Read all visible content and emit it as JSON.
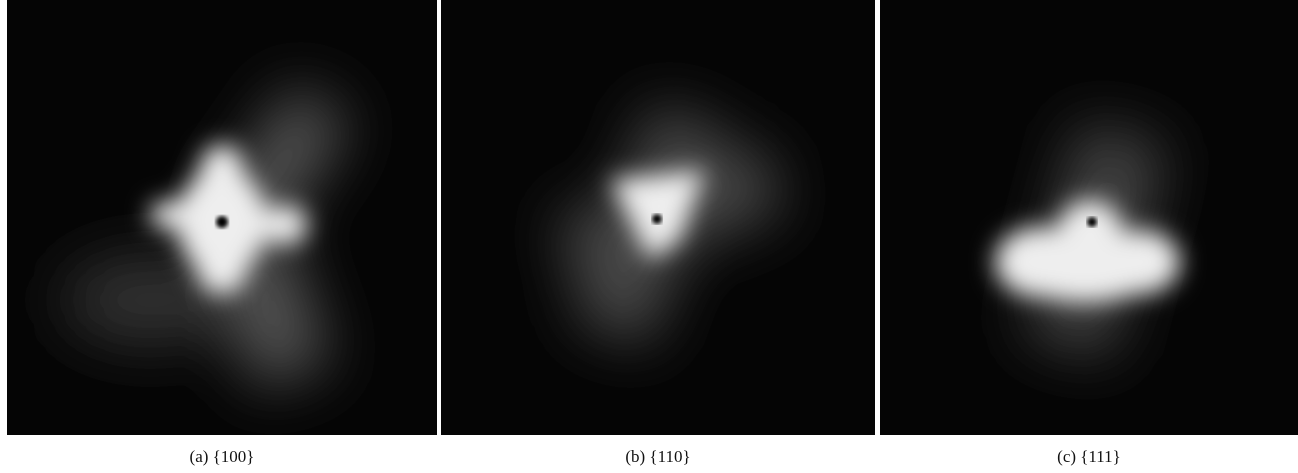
{
  "panels": [
    {
      "caption": "(a) {100}"
    },
    {
      "caption": "(b) {110}"
    },
    {
      "caption": "(c) {111}"
    }
  ]
}
